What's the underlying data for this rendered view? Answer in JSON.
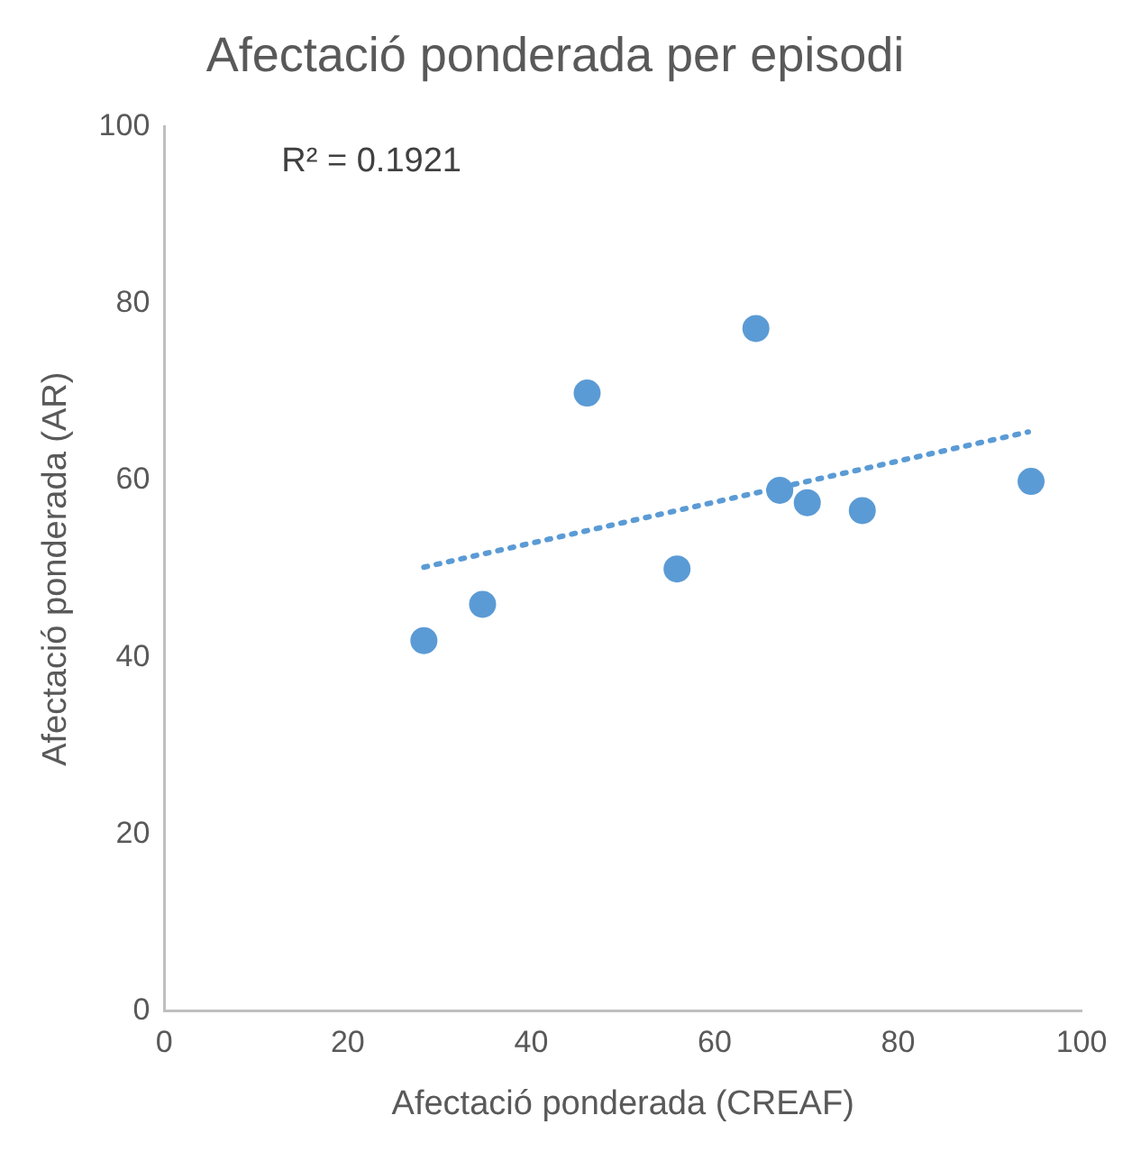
{
  "chart_data": {
    "type": "scatter",
    "title": "Afectació ponderada per episodi",
    "xlabel": "Afectació ponderada (CREAF)",
    "ylabel": "Afectació ponderada (AR)",
    "xlim": [
      0,
      100
    ],
    "xticks": [
      0,
      20,
      40,
      60,
      80,
      100
    ],
    "ylim": [
      0,
      100
    ],
    "yticks": [
      0,
      20,
      40,
      60,
      80,
      100
    ],
    "grid": false,
    "legend": false,
    "marker": "circle",
    "annotations": [
      "R² = 0.1921"
    ],
    "series": [
      {
        "type": "scatter",
        "color": "#5b9bd5",
        "x": [
          28.3,
          34.7,
          46.1,
          55.9,
          64.5,
          67.1,
          70.1,
          76.1,
          94.5
        ],
        "values": [
          41.9,
          46.0,
          69.9,
          50.0,
          77.2,
          58.9,
          57.5,
          56.6,
          59.9
        ]
      },
      {
        "type": "line",
        "color": "#5b9bd5",
        "line_style": "dotted",
        "marker": "none",
        "x": [
          28.3,
          94.2
        ],
        "values": [
          50.2,
          65.5
        ]
      }
    ]
  }
}
